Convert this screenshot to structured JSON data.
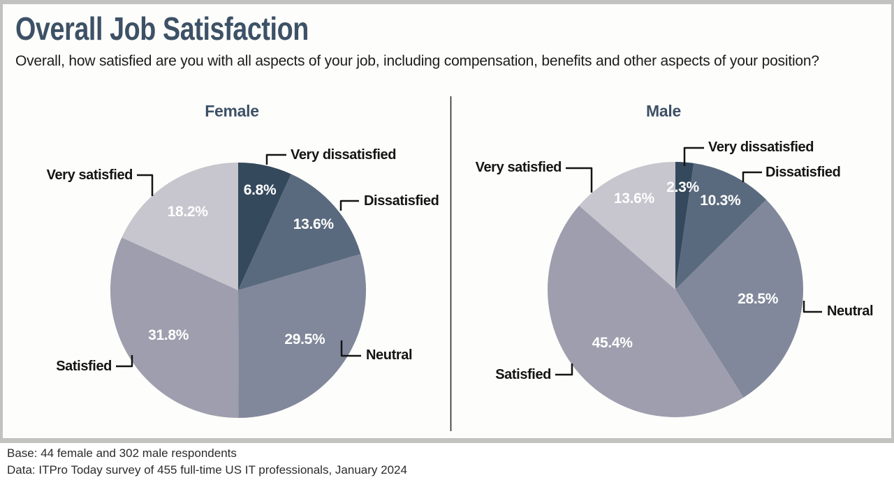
{
  "header": {
    "title": "Overall Job Satisfaction",
    "subtitle": "Overall, how satisfied are you with all aspects of your job, including compensation, benefits and other aspects of your position?"
  },
  "footer": {
    "base_note": "Base: 44 female and 302 male respondents",
    "source_note": "Data: ITPro Today survey of 455 full-time US IT professionals, January 2024"
  },
  "colors": {
    "title_text": "#3d5166",
    "very_dissatisfied": "#35495c",
    "dissatisfied": "#5a6a7e",
    "neutral": "#81889b",
    "satisfied": "#9f9eae",
    "very_satisfied": "#c7c5cd",
    "percent_label": "#ffffff",
    "callout_line": "#141414",
    "panel_border": "#c2c2c0"
  },
  "chart_data": [
    {
      "type": "pie",
      "title": "Female",
      "categories": [
        "Very dissatisfied",
        "Dissatisfied",
        "Neutral",
        "Satisfied",
        "Very satisfied"
      ],
      "values": [
        6.8,
        13.6,
        29.5,
        31.8,
        18.2
      ],
      "labels": [
        "6.8%",
        "13.6%",
        "29.5%",
        "31.8%",
        "18.2%"
      ],
      "colors": [
        "#35495c",
        "#5a6a7e",
        "#81889b",
        "#9f9eae",
        "#c7c5cd"
      ],
      "start_angle": "12 o'clock, clockwise",
      "label_style": "outside callouts for categories, white percent labels inside slices",
      "legend": "none"
    },
    {
      "type": "pie",
      "title": "Male",
      "categories": [
        "Very dissatisfied",
        "Dissatisfied",
        "Neutral",
        "Satisfied",
        "Very satisfied"
      ],
      "values": [
        2.3,
        10.3,
        28.5,
        45.4,
        13.6
      ],
      "labels": [
        "2.3%",
        "10.3%",
        "28.5%",
        "45.4%",
        "13.6%"
      ],
      "colors": [
        "#35495c",
        "#5a6a7e",
        "#81889b",
        "#9f9eae",
        "#c7c5cd"
      ],
      "start_angle": "12 o'clock, clockwise",
      "label_style": "outside callouts for categories, white percent labels inside slices",
      "legend": "none"
    }
  ]
}
